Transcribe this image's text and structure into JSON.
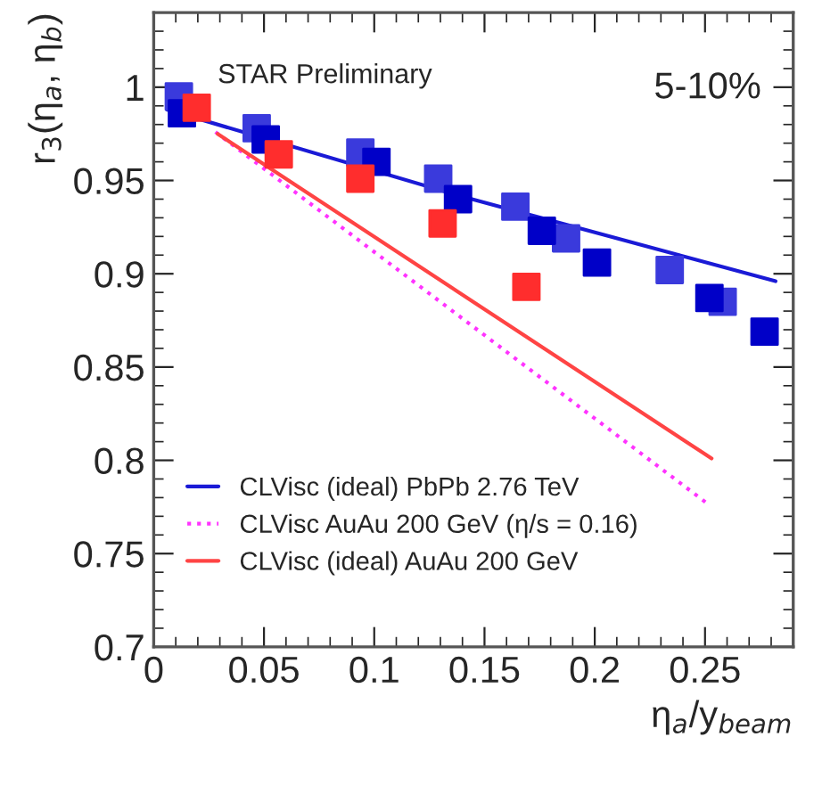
{
  "chart_data": {
    "type": "scatter",
    "xlabel": "η$_{a}$/y$_{beam}$",
    "ylabel": "r$_{3}$(η$_{a}$, η$_{b}$)",
    "xlim": [
      0,
      0.29
    ],
    "ylim": [
      0.7,
      1.04
    ],
    "xticks": [
      0,
      0.05,
      0.1,
      0.15,
      0.2,
      0.25
    ],
    "yticks": [
      0.7,
      0.75,
      0.8,
      0.85,
      0.9,
      0.95,
      1
    ],
    "grid": false,
    "legend": "bottom left",
    "annotations": [
      "STAR Preliminary",
      "5-10%"
    ],
    "series": [
      {
        "type": "line",
        "name": "CLVisc (ideal) PbPb 2.76 TeV",
        "color": "#1a1ad6",
        "marker": "none",
        "line_style": "solid",
        "x": [
          0.006,
          0.138,
          0.282
        ],
        "values": [
          0.988,
          0.942,
          0.896
        ]
      },
      {
        "type": "line",
        "name": "CLVisc AuAu 200 GeV (η/s = 0.16)",
        "color": "#ff33ff",
        "marker": "none",
        "line_style": "dotted",
        "x": [
          0.028,
          0.252
        ],
        "values": [
          0.976,
          0.776
        ]
      },
      {
        "type": "line",
        "name": "CLVisc (ideal) AuAu 200 GeV",
        "color": "#ff4444",
        "marker": "none",
        "line_style": "solid",
        "x": [
          0.029,
          0.253
        ],
        "values": [
          0.975,
          0.801
        ]
      },
      {
        "color": "#3a3adc",
        "marker": "square",
        "x": [
          0.0114,
          0.0467,
          0.0937,
          0.129,
          0.164,
          0.187,
          0.234,
          0.258
        ],
        "values": [
          0.995,
          0.978,
          0.965,
          0.951,
          0.936,
          0.919,
          0.902,
          0.885
        ]
      },
      {
        "color": "#0000c8",
        "marker": "square",
        "x": [
          0.0128,
          0.0508,
          0.101,
          0.138,
          0.176,
          0.201,
          0.252,
          0.277
        ],
        "values": [
          0.986,
          0.972,
          0.96,
          0.94,
          0.923,
          0.906,
          0.887,
          0.869
        ]
      },
      {
        "color": "#ff2d2d",
        "marker": "square",
        "x": [
          0.0195,
          0.0567,
          0.0937,
          0.131,
          0.169
        ],
        "values": [
          0.989,
          0.964,
          0.951,
          0.927,
          0.893
        ]
      }
    ]
  }
}
